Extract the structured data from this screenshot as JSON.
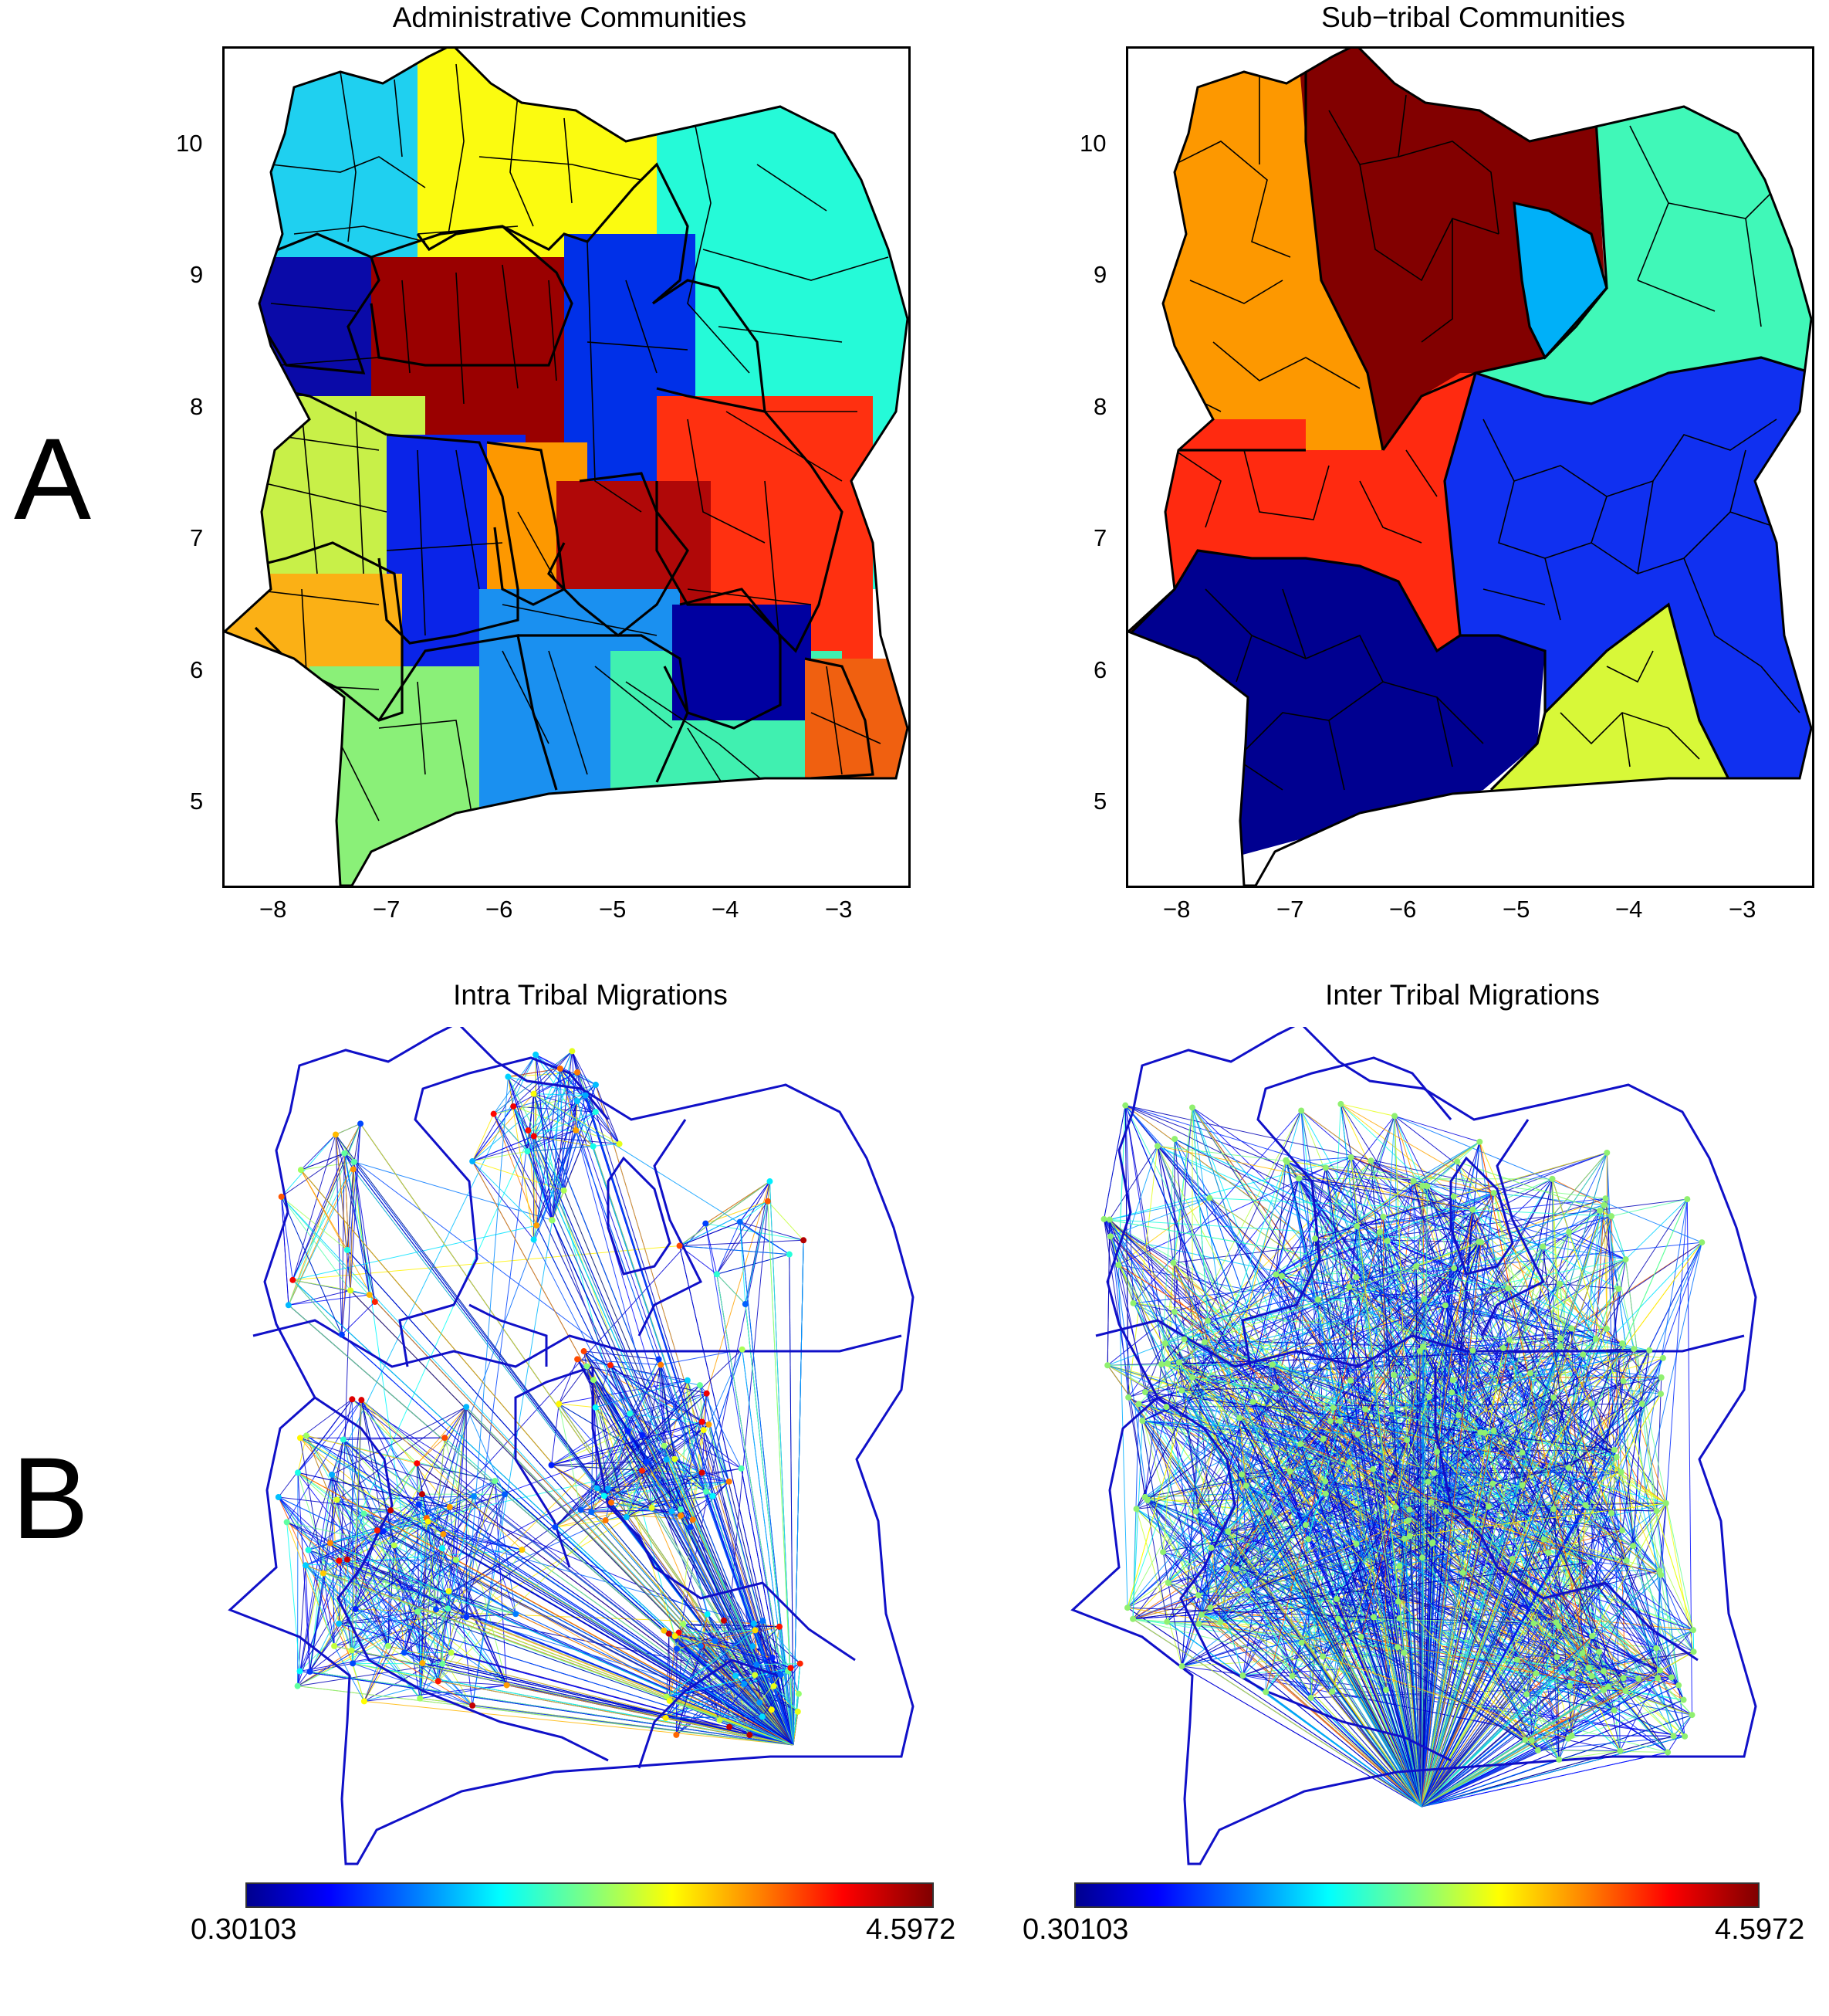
{
  "panel_letters": {
    "a": "A",
    "b": "B"
  },
  "titles": {
    "administrative": "Administrative Communities",
    "subtribal": "Sub−tribal Communities",
    "intra": "Intra Tribal Migrations",
    "inter": "Inter Tribal Migrations"
  },
  "axes": {
    "x_ticks": [
      "−8",
      "−7",
      "−6",
      "−5",
      "−4",
      "−3"
    ],
    "y_ticks": [
      "10",
      "9",
      "8",
      "7",
      "6",
      "5"
    ],
    "x_values": [
      -8,
      -7,
      -6,
      -5,
      -4,
      -3
    ],
    "y_values": [
      10,
      9,
      8,
      7,
      6,
      5
    ],
    "xlim": [
      -8.6,
      -2.5
    ],
    "ylim": [
      4.35,
      10.75
    ]
  },
  "colorbar": {
    "min_label": "0.30103",
    "max_label": "4.5972",
    "colormap": "jet",
    "min": 0.30103,
    "max": 4.5972
  },
  "colors": {
    "boundary": "#000000",
    "network_boundary": "#1010c8",
    "administrative_regions": [
      "#1fd0f0",
      "#fbfb10",
      "#25fad8",
      "#0a0aa8",
      "#9a0000",
      "#0030e8",
      "#c8f048",
      "#fd9800",
      "#ff3010",
      "#b00808",
      "#fbb015",
      "#8af078",
      "#1a90f0",
      "#40f0b0",
      "#0000a0",
      "#f06010"
    ],
    "subtribal_regions": [
      "#fd9800",
      "#820000",
      "#00b0f8",
      "#40f8b8",
      "#ff2a10",
      "#000090",
      "#1030f0",
      "#d8f838"
    ]
  }
}
